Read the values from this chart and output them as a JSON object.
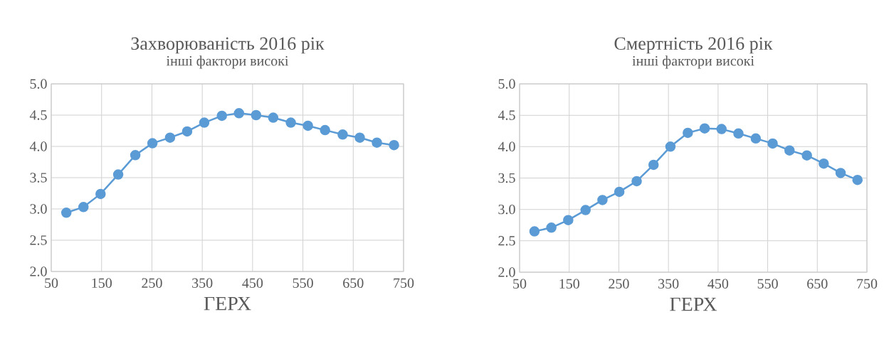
{
  "chart_data": [
    {
      "type": "line",
      "title": "Захворюваність 2016 рік",
      "subtitle": "інші фактори високі",
      "xlabel": "ГЕРХ",
      "x": [
        80,
        114,
        148,
        183,
        217,
        251,
        286,
        320,
        354,
        389,
        423,
        457,
        491,
        526,
        560,
        594,
        629,
        663,
        697,
        731
      ],
      "values": [
        2.94,
        3.03,
        3.24,
        3.55,
        3.86,
        4.05,
        4.14,
        4.24,
        4.38,
        4.49,
        4.53,
        4.5,
        4.46,
        4.38,
        4.33,
        4.26,
        4.19,
        4.14,
        4.06,
        4.02
      ],
      "color": "#5b9bd5",
      "marker": "circle",
      "line_style": "solid",
      "grid": true,
      "xlim": [
        50,
        750
      ],
      "xticks": [
        50,
        150,
        250,
        350,
        450,
        550,
        650,
        750
      ],
      "ylim": [
        2,
        5
      ],
      "yticks": [
        {
          "value": 2,
          "label": "2.0"
        },
        {
          "value": 2.5,
          "label": "2.5"
        },
        {
          "value": 3,
          "label": "3.0"
        },
        {
          "value": 3.5,
          "label": "3.5"
        },
        {
          "value": 4,
          "label": "4.0"
        },
        {
          "value": 4.5,
          "label": "4.5"
        },
        {
          "value": 5,
          "label": "5.0"
        }
      ]
    },
    {
      "type": "line",
      "title": "Смертність 2016 рік",
      "subtitle": "інші фактори високі",
      "xlabel": "ГЕРХ",
      "x": [
        80,
        114,
        148,
        183,
        217,
        251,
        286,
        320,
        354,
        389,
        423,
        457,
        491,
        526,
        560,
        594,
        629,
        663,
        697,
        731
      ],
      "values": [
        2.65,
        2.71,
        2.83,
        2.99,
        3.15,
        3.28,
        3.45,
        3.71,
        4.0,
        4.22,
        4.29,
        4.28,
        4.21,
        4.13,
        4.05,
        3.94,
        3.86,
        3.73,
        3.58,
        3.47
      ],
      "color": "#5b9bd5",
      "marker": "circle",
      "line_style": "solid",
      "grid": true,
      "xlim": [
        50,
        750
      ],
      "xticks": [
        50,
        150,
        250,
        350,
        450,
        550,
        650,
        750
      ],
      "ylim": [
        2,
        5
      ],
      "yticks": [
        {
          "value": 2,
          "label": "2.0"
        },
        {
          "value": 2.5,
          "label": "2.5"
        },
        {
          "value": 3,
          "label": "3.0"
        },
        {
          "value": 3.5,
          "label": "3.5"
        },
        {
          "value": 4,
          "label": "4.0"
        },
        {
          "value": 4.5,
          "label": "4.5"
        },
        {
          "value": 5,
          "label": "5.0"
        }
      ]
    }
  ]
}
